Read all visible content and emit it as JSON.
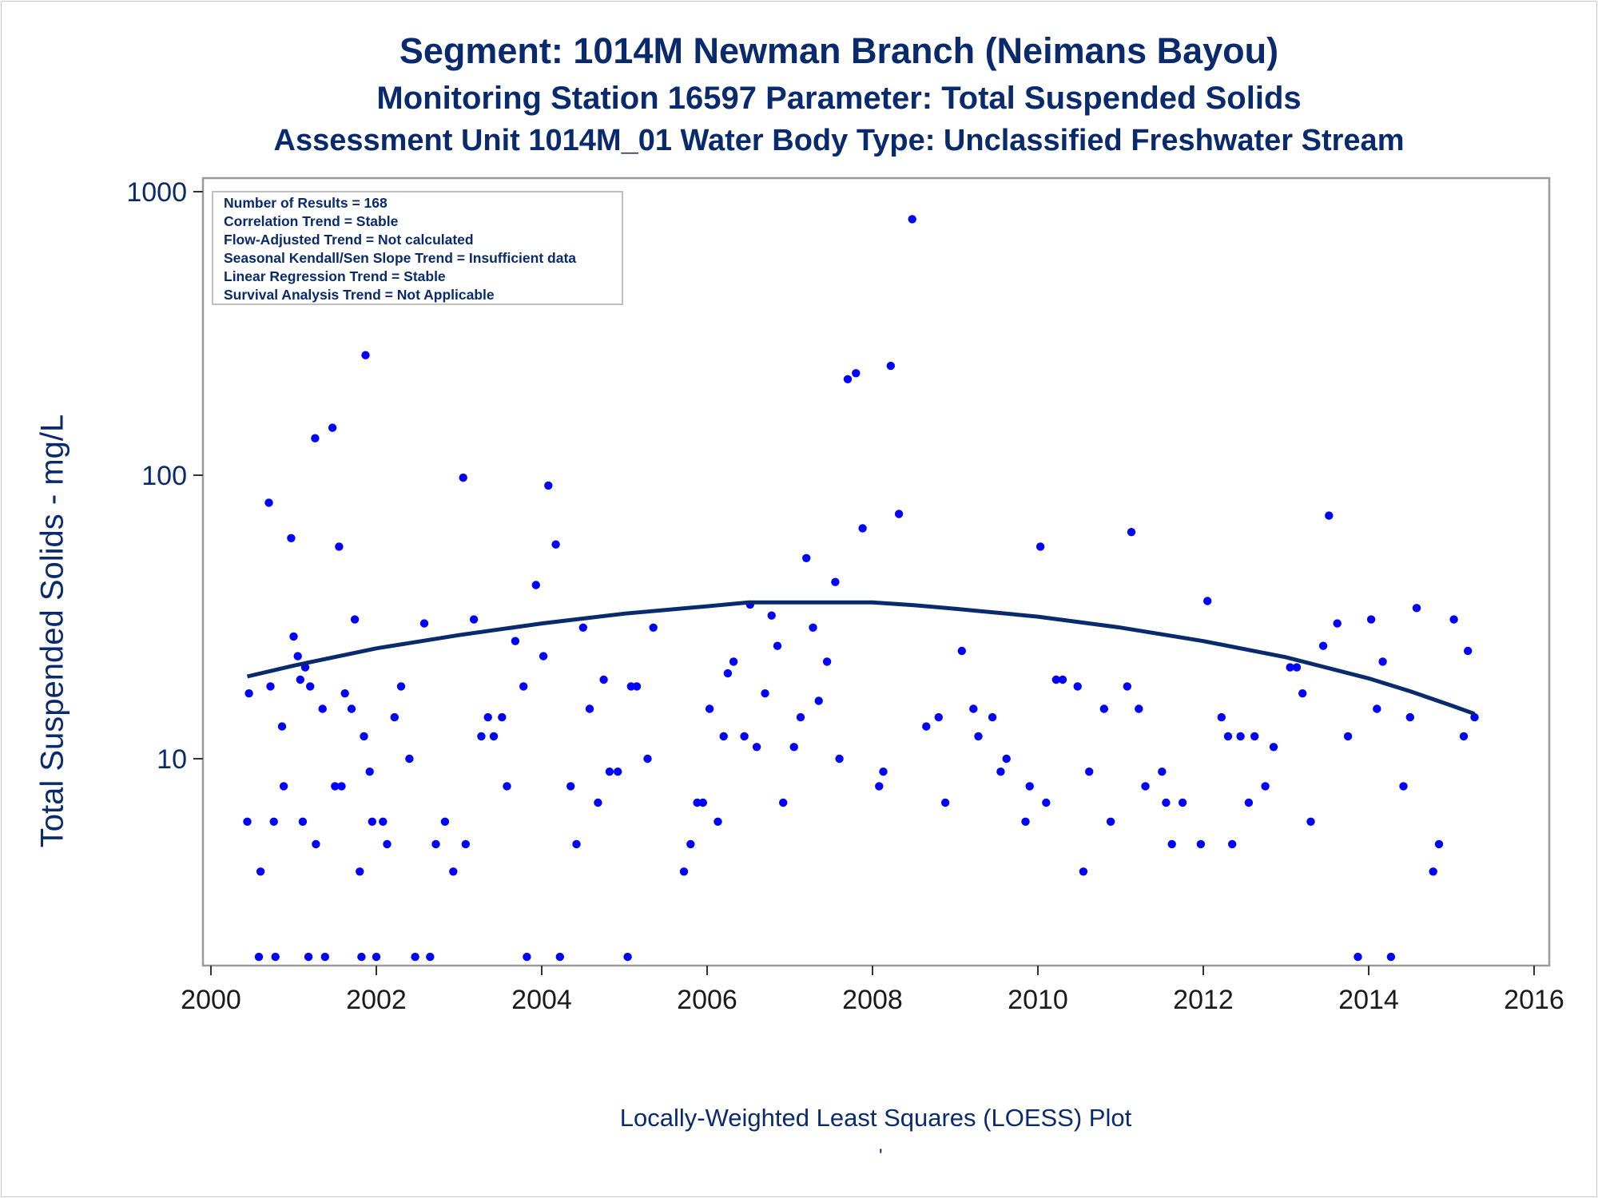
{
  "chart_data": {
    "type": "scatter",
    "title": "Segment: 1014M  Newman Branch (Neimans Bayou)",
    "subtitle": "Monitoring Station 16597 Parameter: Total Suspended Solids",
    "subtitle2": "Assessment Unit 1014M_01   Water Body Type: Unclassified Freshwater Stream",
    "xlabel": "",
    "ylabel": "Total Suspended Solids - mg/L",
    "footnote": "Locally-Weighted Least Squares (LOESS) Plot",
    "footnote_mark": "'",
    "xlim": [
      2000,
      2016
    ],
    "ylim": [
      2,
      1000
    ],
    "y_scale": "log",
    "x_ticks": [
      2000,
      2002,
      2004,
      2006,
      2008,
      2010,
      2012,
      2014,
      2016
    ],
    "y_ticks": [
      10,
      100,
      1000
    ],
    "grid": false,
    "inset": [
      "Number of Results = 168",
      "Correlation Trend = Stable",
      "Flow-Adjusted Trend = Not calculated",
      "Seasonal Kendall/Sen Slope Trend = Insufficient data",
      "Linear Regression Trend = Stable",
      "Survival Analysis Trend = Not Applicable"
    ],
    "inset_placement": "top-left",
    "colors": {
      "points": "#0000ff",
      "loess": "#0a2a6e",
      "text": "#0a2a6e"
    },
    "points": [
      [
        2000.44,
        6
      ],
      [
        2000.46,
        17
      ],
      [
        2000.58,
        2
      ],
      [
        2000.6,
        4
      ],
      [
        2000.7,
        80
      ],
      [
        2000.72,
        18
      ],
      [
        2000.76,
        6
      ],
      [
        2000.78,
        2
      ],
      [
        2000.86,
        13
      ],
      [
        2000.88,
        8
      ],
      [
        2000.97,
        60
      ],
      [
        2001.0,
        27
      ],
      [
        2001.05,
        23
      ],
      [
        2001.08,
        19
      ],
      [
        2001.11,
        6
      ],
      [
        2001.14,
        21
      ],
      [
        2001.18,
        2
      ],
      [
        2001.2,
        18
      ],
      [
        2001.26,
        135
      ],
      [
        2001.27,
        5
      ],
      [
        2001.35,
        15
      ],
      [
        2001.38,
        2
      ],
      [
        2001.47,
        147
      ],
      [
        2001.5,
        8
      ],
      [
        2001.55,
        56
      ],
      [
        2001.58,
        8
      ],
      [
        2001.62,
        17
      ],
      [
        2001.7,
        15
      ],
      [
        2001.74,
        31
      ],
      [
        2001.8,
        4
      ],
      [
        2001.82,
        2
      ],
      [
        2001.85,
        12
      ],
      [
        2001.87,
        265
      ],
      [
        2001.92,
        9
      ],
      [
        2001.95,
        6
      ],
      [
        2002.0,
        2
      ],
      [
        2002.08,
        6
      ],
      [
        2002.13,
        5
      ],
      [
        2002.22,
        14
      ],
      [
        2002.3,
        18
      ],
      [
        2002.4,
        10
      ],
      [
        2002.47,
        2
      ],
      [
        2002.58,
        30
      ],
      [
        2002.65,
        2
      ],
      [
        2002.72,
        5
      ],
      [
        2002.83,
        6
      ],
      [
        2002.93,
        4
      ],
      [
        2003.05,
        98
      ],
      [
        2003.08,
        5
      ],
      [
        2003.18,
        31
      ],
      [
        2003.27,
        12
      ],
      [
        2003.35,
        14
      ],
      [
        2003.42,
        12
      ],
      [
        2003.52,
        14
      ],
      [
        2003.58,
        8
      ],
      [
        2003.68,
        26
      ],
      [
        2003.78,
        18
      ],
      [
        2003.82,
        2
      ],
      [
        2003.93,
        41
      ],
      [
        2004.02,
        23
      ],
      [
        2004.08,
        92
      ],
      [
        2004.17,
        57
      ],
      [
        2004.22,
        2
      ],
      [
        2004.35,
        8
      ],
      [
        2004.42,
        5
      ],
      [
        2004.5,
        29
      ],
      [
        2004.58,
        15
      ],
      [
        2004.68,
        7
      ],
      [
        2004.75,
        19
      ],
      [
        2004.82,
        9
      ],
      [
        2004.92,
        9
      ],
      [
        2005.04,
        2
      ],
      [
        2005.08,
        18
      ],
      [
        2005.15,
        18
      ],
      [
        2005.28,
        10
      ],
      [
        2005.35,
        29
      ],
      [
        2005.72,
        4
      ],
      [
        2005.8,
        5
      ],
      [
        2005.88,
        7
      ],
      [
        2005.95,
        7
      ],
      [
        2006.03,
        15
      ],
      [
        2006.13,
        6
      ],
      [
        2006.2,
        12
      ],
      [
        2006.25,
        20
      ],
      [
        2006.32,
        22
      ],
      [
        2006.45,
        12
      ],
      [
        2006.52,
        35
      ],
      [
        2006.6,
        11
      ],
      [
        2006.7,
        17
      ],
      [
        2006.78,
        32
      ],
      [
        2006.85,
        25
      ],
      [
        2006.92,
        7
      ],
      [
        2007.05,
        11
      ],
      [
        2007.13,
        14
      ],
      [
        2007.2,
        51
      ],
      [
        2007.28,
        29
      ],
      [
        2007.35,
        16
      ],
      [
        2007.45,
        22
      ],
      [
        2007.55,
        42
      ],
      [
        2007.6,
        10
      ],
      [
        2007.7,
        218
      ],
      [
        2007.8,
        229
      ],
      [
        2007.88,
        65
      ],
      [
        2008.08,
        8
      ],
      [
        2008.13,
        9
      ],
      [
        2008.22,
        243
      ],
      [
        2008.32,
        73
      ],
      [
        2008.48,
        800
      ],
      [
        2008.65,
        13
      ],
      [
        2008.8,
        14
      ],
      [
        2008.88,
        7
      ],
      [
        2009.08,
        24
      ],
      [
        2009.22,
        15
      ],
      [
        2009.28,
        12
      ],
      [
        2009.45,
        14
      ],
      [
        2009.55,
        9
      ],
      [
        2009.62,
        10
      ],
      [
        2009.85,
        6
      ],
      [
        2009.9,
        8
      ],
      [
        2010.03,
        56
      ],
      [
        2010.1,
        7
      ],
      [
        2010.22,
        19
      ],
      [
        2010.3,
        19
      ],
      [
        2010.48,
        18
      ],
      [
        2010.55,
        4
      ],
      [
        2010.62,
        9
      ],
      [
        2010.8,
        15
      ],
      [
        2010.88,
        6
      ],
      [
        2011.08,
        18
      ],
      [
        2011.13,
        63
      ],
      [
        2011.22,
        15
      ],
      [
        2011.3,
        8
      ],
      [
        2011.5,
        9
      ],
      [
        2011.55,
        7
      ],
      [
        2011.62,
        5
      ],
      [
        2011.75,
        7
      ],
      [
        2011.97,
        5
      ],
      [
        2012.05,
        36
      ],
      [
        2012.22,
        14
      ],
      [
        2012.3,
        12
      ],
      [
        2012.35,
        5
      ],
      [
        2012.45,
        12
      ],
      [
        2012.55,
        7
      ],
      [
        2012.62,
        12
      ],
      [
        2012.75,
        8
      ],
      [
        2012.85,
        11
      ],
      [
        2013.05,
        21
      ],
      [
        2013.13,
        21
      ],
      [
        2013.2,
        17
      ],
      [
        2013.3,
        6
      ],
      [
        2013.45,
        25
      ],
      [
        2013.52,
        72
      ],
      [
        2013.62,
        30
      ],
      [
        2013.75,
        12
      ],
      [
        2013.87,
        2
      ],
      [
        2014.03,
        31
      ],
      [
        2014.1,
        15
      ],
      [
        2014.17,
        22
      ],
      [
        2014.27,
        2
      ],
      [
        2014.42,
        8
      ],
      [
        2014.5,
        14
      ],
      [
        2014.58,
        34
      ],
      [
        2014.78,
        4
      ],
      [
        2014.85,
        5
      ],
      [
        2015.03,
        31
      ],
      [
        2015.15,
        12
      ],
      [
        2015.2,
        24
      ],
      [
        2015.28,
        14
      ]
    ],
    "loess": [
      [
        2000.44,
        19.5
      ],
      [
        2001.0,
        21.3
      ],
      [
        2002.0,
        24.5
      ],
      [
        2003.0,
        27.3
      ],
      [
        2004.0,
        30.0
      ],
      [
        2005.0,
        32.5
      ],
      [
        2006.0,
        34.5
      ],
      [
        2006.5,
        35.6
      ],
      [
        2007.0,
        35.6
      ],
      [
        2007.5,
        35.6
      ],
      [
        2008.0,
        35.6
      ],
      [
        2008.5,
        34.8
      ],
      [
        2009.0,
        33.8
      ],
      [
        2010.0,
        31.7
      ],
      [
        2011.0,
        29.0
      ],
      [
        2012.0,
        26.0
      ],
      [
        2013.0,
        22.8
      ],
      [
        2014.0,
        19.2
      ],
      [
        2014.5,
        17.3
      ],
      [
        2015.0,
        15.4
      ],
      [
        2015.28,
        14.4
      ]
    ]
  }
}
